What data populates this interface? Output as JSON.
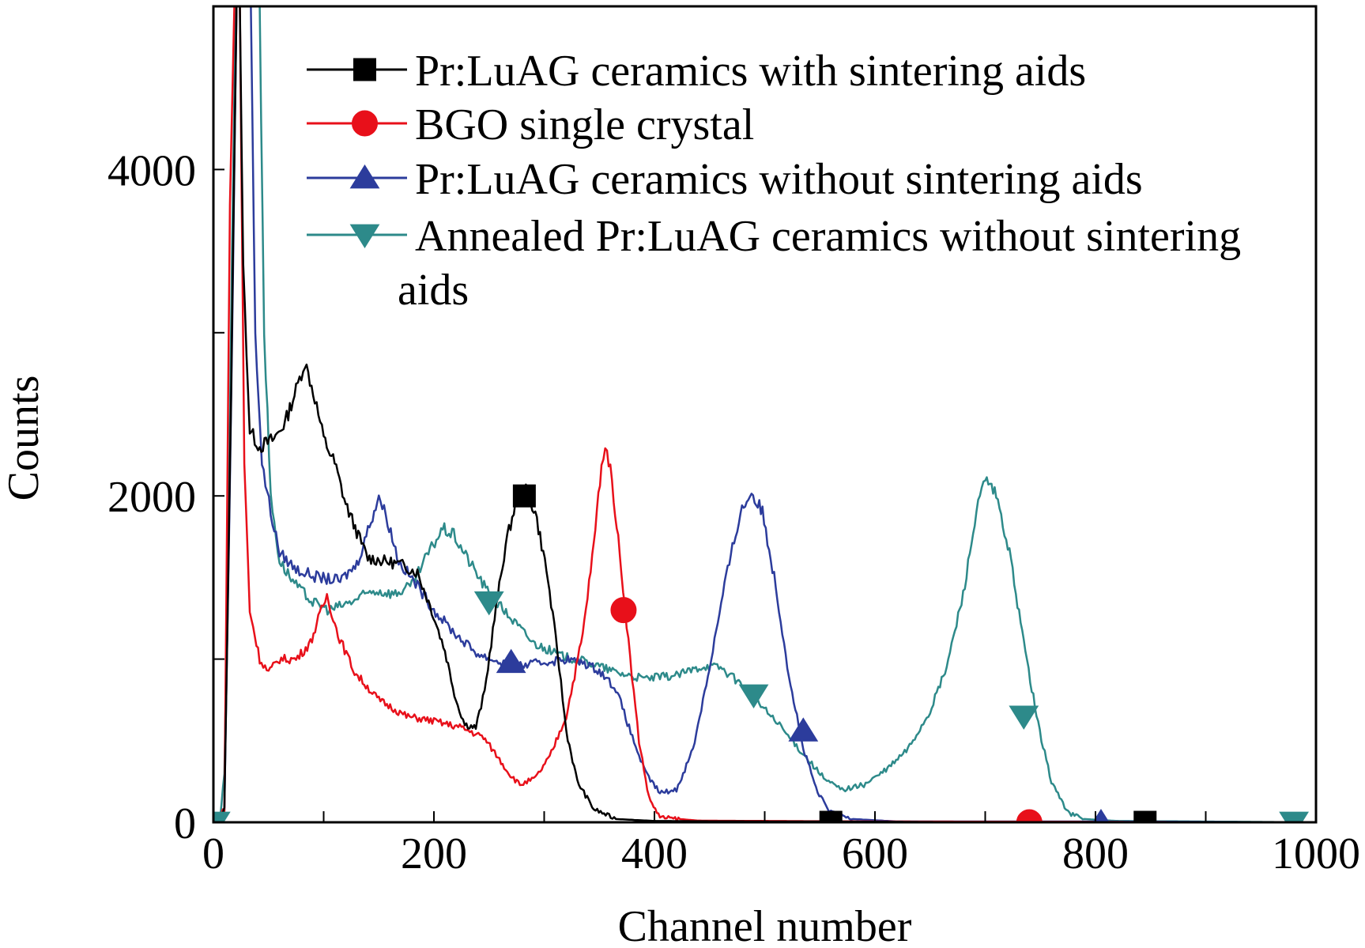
{
  "chart_data": {
    "type": "line",
    "title": "",
    "xlabel": "Channel number",
    "ylabel": "Counts",
    "xlim": [
      0,
      1000
    ],
    "ylim": [
      0,
      5000
    ],
    "x_ticks": [
      0,
      200,
      400,
      600,
      800,
      1000
    ],
    "x_tick_labels": [
      "0",
      "200",
      "400",
      "600",
      "800",
      "1000"
    ],
    "y_ticks": [
      0,
      2000,
      4000
    ],
    "y_tick_labels": [
      "0",
      "2000",
      "4000"
    ],
    "x_minor_step": 100,
    "y_minor_step": 1000,
    "grid": false,
    "legend_position": "top-right",
    "series": [
      {
        "name": "Pr:LuAG ceramics with sintering aids",
        "color": "#000000",
        "marker": "square",
        "points": [
          [
            0,
            0
          ],
          [
            10,
            80
          ],
          [
            16,
            2600
          ],
          [
            21,
            5000
          ],
          [
            24,
            5000
          ],
          [
            27,
            3400
          ],
          [
            33,
            2400
          ],
          [
            42,
            2300
          ],
          [
            55,
            2350
          ],
          [
            65,
            2450
          ],
          [
            75,
            2650
          ],
          [
            83,
            2820
          ],
          [
            92,
            2600
          ],
          [
            100,
            2350
          ],
          [
            110,
            2200
          ],
          [
            120,
            1950
          ],
          [
            130,
            1780
          ],
          [
            140,
            1620
          ],
          [
            155,
            1600
          ],
          [
            170,
            1580
          ],
          [
            185,
            1530
          ],
          [
            198,
            1300
          ],
          [
            210,
            1050
          ],
          [
            220,
            750
          ],
          [
            228,
            600
          ],
          [
            238,
            580
          ],
          [
            246,
            800
          ],
          [
            255,
            1250
          ],
          [
            265,
            1700
          ],
          [
            274,
            1950
          ],
          [
            282,
            2050
          ],
          [
            292,
            1900
          ],
          [
            302,
            1550
          ],
          [
            312,
            1050
          ],
          [
            320,
            560
          ],
          [
            330,
            250
          ],
          [
            345,
            80
          ],
          [
            365,
            20
          ],
          [
            400,
            8
          ],
          [
            500,
            5
          ],
          [
            560,
            5
          ],
          [
            700,
            0
          ],
          [
            1000,
            0
          ]
        ],
        "marker_points": [
          [
            282,
            2000
          ],
          [
            560,
            0
          ],
          [
            845,
            0
          ]
        ]
      },
      {
        "name": "BGO single crystal",
        "color": "#e8101a",
        "marker": "circle",
        "points": [
          [
            0,
            0
          ],
          [
            10,
            80
          ],
          [
            15,
            3800
          ],
          [
            19,
            5000
          ],
          [
            24,
            5000
          ],
          [
            28,
            2200
          ],
          [
            33,
            1300
          ],
          [
            42,
            1000
          ],
          [
            50,
            920
          ],
          [
            60,
            1000
          ],
          [
            75,
            1000
          ],
          [
            88,
            1100
          ],
          [
            98,
            1300
          ],
          [
            103,
            1390
          ],
          [
            113,
            1150
          ],
          [
            128,
            920
          ],
          [
            150,
            750
          ],
          [
            175,
            650
          ],
          [
            200,
            620
          ],
          [
            225,
            580
          ],
          [
            245,
            520
          ],
          [
            258,
            400
          ],
          [
            268,
            300
          ],
          [
            278,
            230
          ],
          [
            292,
            270
          ],
          [
            305,
            400
          ],
          [
            320,
            650
          ],
          [
            335,
            1150
          ],
          [
            345,
            1700
          ],
          [
            352,
            2200
          ],
          [
            357,
            2300
          ],
          [
            363,
            2000
          ],
          [
            370,
            1550
          ],
          [
            378,
            1000
          ],
          [
            386,
            500
          ],
          [
            395,
            150
          ],
          [
            405,
            30
          ],
          [
            440,
            10
          ],
          [
            600,
            5
          ],
          [
            1000,
            0
          ]
        ],
        "marker_points": [
          [
            372,
            1300
          ],
          [
            740,
            0
          ]
        ]
      },
      {
        "name": "Pr:LuAG ceramics without sintering aids",
        "color": "#2c3c9c",
        "marker": "triangle-up",
        "points": [
          [
            0,
            0
          ],
          [
            10,
            80
          ],
          [
            16,
            2500
          ],
          [
            21,
            5000
          ],
          [
            34,
            5000
          ],
          [
            38,
            3000
          ],
          [
            44,
            2200
          ],
          [
            52,
            1900
          ],
          [
            60,
            1650
          ],
          [
            75,
            1550
          ],
          [
            95,
            1500
          ],
          [
            115,
            1480
          ],
          [
            130,
            1580
          ],
          [
            143,
            1850
          ],
          [
            150,
            2000
          ],
          [
            158,
            1850
          ],
          [
            168,
            1600
          ],
          [
            185,
            1450
          ],
          [
            200,
            1300
          ],
          [
            220,
            1150
          ],
          [
            240,
            1030
          ],
          [
            260,
            980
          ],
          [
            280,
            960
          ],
          [
            300,
            980
          ],
          [
            320,
            1000
          ],
          [
            335,
            980
          ],
          [
            350,
            930
          ],
          [
            365,
            820
          ],
          [
            380,
            520
          ],
          [
            392,
            300
          ],
          [
            405,
            180
          ],
          [
            420,
            200
          ],
          [
            435,
            450
          ],
          [
            450,
            950
          ],
          [
            465,
            1500
          ],
          [
            478,
            1900
          ],
          [
            488,
            2020
          ],
          [
            498,
            1900
          ],
          [
            510,
            1450
          ],
          [
            522,
            900
          ],
          [
            535,
            450
          ],
          [
            548,
            180
          ],
          [
            560,
            60
          ],
          [
            580,
            20
          ],
          [
            620,
            5
          ],
          [
            800,
            5
          ],
          [
            1000,
            0
          ]
        ],
        "marker_points": [
          [
            270,
            980
          ],
          [
            535,
            560
          ],
          [
            805,
            0
          ]
        ]
      },
      {
        "name": "Annealed Pr:LuAG ceramics without sintering aids",
        "color": "#2d8a8a",
        "marker": "triangle-down",
        "points": [
          [
            0,
            0
          ],
          [
            6,
            20
          ],
          [
            10,
            300
          ],
          [
            14,
            2000
          ],
          [
            20,
            5000
          ],
          [
            42,
            5000
          ],
          [
            46,
            3000
          ],
          [
            52,
            2000
          ],
          [
            60,
            1600
          ],
          [
            75,
            1450
          ],
          [
            90,
            1350
          ],
          [
            105,
            1300
          ],
          [
            125,
            1350
          ],
          [
            145,
            1420
          ],
          [
            165,
            1400
          ],
          [
            180,
            1450
          ],
          [
            195,
            1650
          ],
          [
            208,
            1800
          ],
          [
            218,
            1760
          ],
          [
            232,
            1600
          ],
          [
            250,
            1400
          ],
          [
            270,
            1250
          ],
          [
            290,
            1100
          ],
          [
            315,
            1020
          ],
          [
            340,
            980
          ],
          [
            365,
            920
          ],
          [
            390,
            880
          ],
          [
            420,
            900
          ],
          [
            445,
            960
          ],
          [
            460,
            950
          ],
          [
            478,
            850
          ],
          [
            495,
            730
          ],
          [
            515,
            580
          ],
          [
            535,
            420
          ],
          [
            555,
            260
          ],
          [
            570,
            200
          ],
          [
            590,
            230
          ],
          [
            610,
            320
          ],
          [
            630,
            450
          ],
          [
            650,
            680
          ],
          [
            665,
            950
          ],
          [
            680,
            1400
          ],
          [
            692,
            1900
          ],
          [
            700,
            2100
          ],
          [
            710,
            2000
          ],
          [
            722,
            1650
          ],
          [
            735,
            1100
          ],
          [
            748,
            600
          ],
          [
            760,
            250
          ],
          [
            775,
            60
          ],
          [
            790,
            20
          ],
          [
            820,
            8
          ],
          [
            1000,
            0
          ]
        ],
        "marker_points": [
          [
            2,
            0
          ],
          [
            250,
            1350
          ],
          [
            490,
            780
          ],
          [
            735,
            650
          ],
          [
            980,
            0
          ]
        ]
      }
    ]
  }
}
